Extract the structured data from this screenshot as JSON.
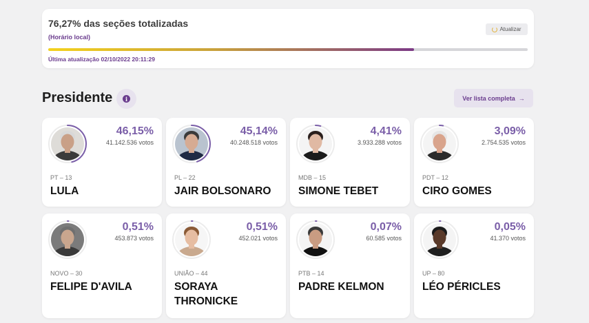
{
  "status": {
    "title": "76,27% das seções totalizadas",
    "subtitle": "(Horário local)",
    "refresh_label": "Atualizar",
    "progress_fraction": 0.7627,
    "last_update": "Última atualização 02/10/2022 20:11:29"
  },
  "section": {
    "title": "Presidente",
    "info_icon": "info-icon",
    "full_list_label": "Ver lista completa",
    "full_list_arrow": "→"
  },
  "colors": {
    "accent": "#6b3d8e",
    "percent": "#7a5ea8",
    "progress_start": "#f4d21d",
    "progress_end": "#7c3a86"
  },
  "candidates": [
    {
      "party": "PT – 13",
      "name": "LULA",
      "percent": "46,15%",
      "votes": "41.142.536 votos",
      "share": 0.4615,
      "skin": "#c9a087",
      "hair": "#d8d8d8",
      "bg": "#dedcd8",
      "shirt": "#3b3b3b"
    },
    {
      "party": "PL – 22",
      "name": "JAIR BOLSONARO",
      "percent": "45,14%",
      "votes": "40.248.518 votos",
      "share": 0.4514,
      "skin": "#d6ab93",
      "hair": "#3a3a3a",
      "bg": "#b9c3cf",
      "shirt": "#1f2a44"
    },
    {
      "party": "MDB – 15",
      "name": "SIMONE TEBET",
      "percent": "4,41%",
      "votes": "3.933.288 votos",
      "share": 0.0441,
      "skin": "#e0b9a3",
      "hair": "#2a1f1c",
      "bg": "#f4f4f4",
      "shirt": "#1b1b1b"
    },
    {
      "party": "PDT – 12",
      "name": "CIRO GOMES",
      "percent": "3,09%",
      "votes": "2.754.535 votos",
      "share": 0.0309,
      "skin": "#d9a48c",
      "hair": "#e6e6e6",
      "bg": "#f4f4f4",
      "shirt": "#2b2b2b"
    },
    {
      "party": "NOVO – 30",
      "name": "FELIPE D'AVILA",
      "percent": "0,51%",
      "votes": "453.873 votos",
      "share": 0.0051,
      "skin": "#c9a68e",
      "hair": "#6f6f6f",
      "bg": "#7b7b7b",
      "shirt": "#3a3a3a"
    },
    {
      "party": "UNIÃO – 44",
      "name": "SORAYA THRONICKE",
      "percent": "0,51%",
      "votes": "452.021 votos",
      "share": 0.0051,
      "skin": "#e6bda2",
      "hair": "#8a5a36",
      "bg": "#f6f6f6",
      "shirt": "#c9a98e"
    },
    {
      "party": "PTB – 14",
      "name": "PADRE KELMON",
      "percent": "0,07%",
      "votes": "60.585 votos",
      "share": 0.0007,
      "skin": "#c99c82",
      "hair": "#3a3a3a",
      "bg": "#f4f4f4",
      "shirt": "#111111"
    },
    {
      "party": "UP – 80",
      "name": "LÉO PÉRICLES",
      "percent": "0,05%",
      "votes": "41.370 votos",
      "share": 0.0005,
      "skin": "#5a3a2a",
      "hair": "#1b1b1b",
      "bg": "#f4f4f4",
      "shirt": "#1f1f1f"
    }
  ]
}
